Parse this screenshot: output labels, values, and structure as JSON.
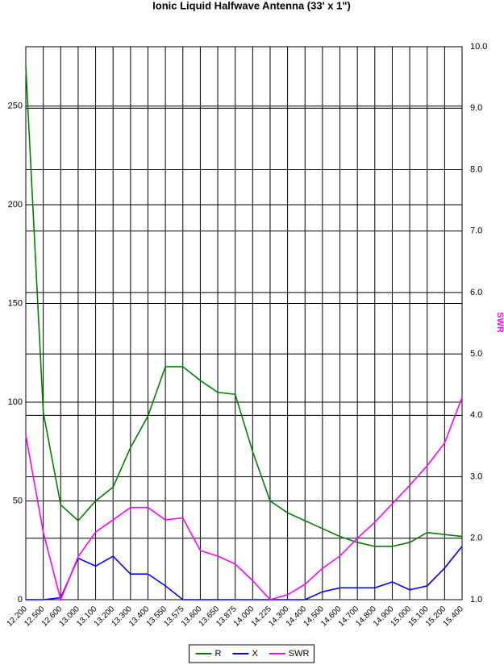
{
  "chart_data": {
    "type": "line",
    "title": "Ionic Liquid Halfwave Antenna (33' x 1\")",
    "y2label": "SWR",
    "categories": [
      "12.200",
      "12.500",
      "12.600",
      "13.000",
      "13.100",
      "13.200",
      "13.300",
      "13.400",
      "13.550",
      "13.575",
      "13.600",
      "13.650",
      "13.875",
      "14.000",
      "14.225",
      "14.300",
      "14.400",
      "14.500",
      "14.600",
      "14.700",
      "14.800",
      "14.900",
      "15.000",
      "15.100",
      "15.200",
      "15.400"
    ],
    "series": [
      {
        "name": "R",
        "color": "#008000",
        "values": [
          270,
          95,
          48,
          40,
          50,
          57,
          77,
          93,
          118,
          118,
          111,
          105,
          104,
          75,
          50,
          44,
          40,
          36,
          32,
          29,
          27,
          27,
          29,
          34,
          33,
          32
        ]
      },
      {
        "name": "X",
        "color": "#0000ff",
        "values": [
          0,
          0,
          1,
          21,
          17,
          22,
          13,
          13,
          7,
          0,
          0,
          0,
          0,
          0,
          0,
          0,
          0,
          4,
          6,
          6,
          6,
          9,
          5,
          7,
          16,
          27
        ]
      },
      {
        "name": "SWR",
        "color": "#ff00ff",
        "axis": "y2",
        "values": [
          3.68,
          2.1,
          1.0,
          1.7,
          2.1,
          2.3,
          2.5,
          2.5,
          2.3,
          2.33,
          1.8,
          1.71,
          1.58,
          1.31,
          1.0,
          1.08,
          1.25,
          1.51,
          1.71,
          2.0,
          2.26,
          2.56,
          2.86,
          3.18,
          3.55,
          4.29
        ]
      }
    ],
    "ylim": [
      0,
      280
    ],
    "yticks": [
      0,
      50,
      100,
      150,
      200,
      250
    ],
    "y2lim": [
      1,
      10
    ],
    "y2ticks": [
      {
        "value": 1,
        "label": "1.0"
      },
      {
        "value": 2,
        "label": "2.0"
      },
      {
        "value": 3,
        "label": "3.0"
      },
      {
        "value": 4,
        "label": "4.0"
      },
      {
        "value": 5,
        "label": "5.0"
      },
      {
        "value": 6,
        "label": "6.0"
      },
      {
        "value": 7,
        "label": "7.0"
      },
      {
        "value": 8,
        "label": "8.0"
      },
      {
        "value": 9,
        "label": "9.0"
      },
      {
        "value": 10,
        "label": "10.0"
      }
    ],
    "grid": true,
    "legend": "bottom"
  }
}
